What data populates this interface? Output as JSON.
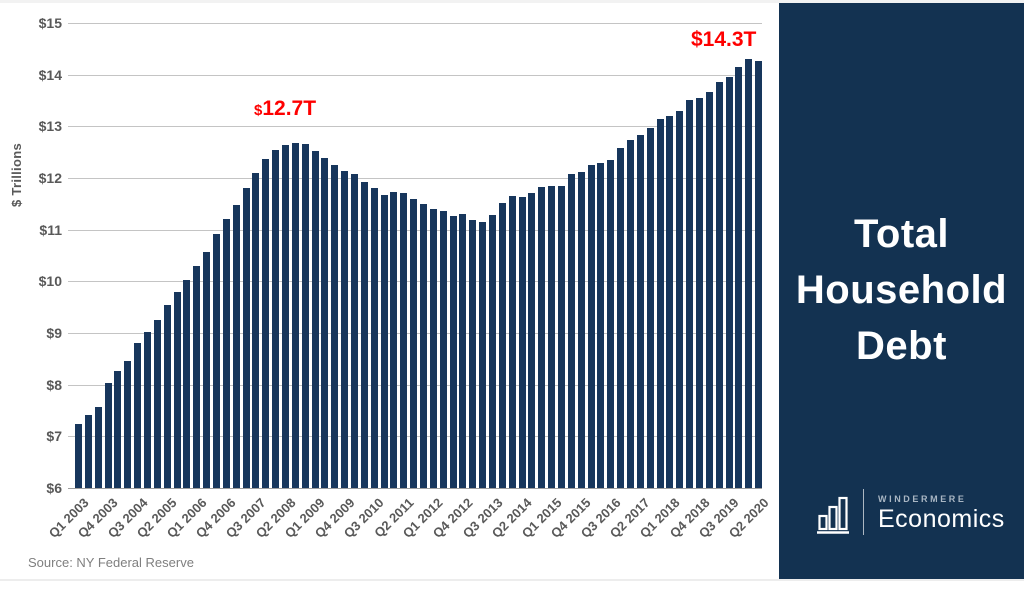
{
  "chart": {
    "y_axis_title": "$ Trillions",
    "source": "Source: NY Federal Reserve"
  },
  "annotations": {
    "peak_symbol": "$",
    "peak_value": "12.7T",
    "latest": "$14.3T"
  },
  "sidebar": {
    "title_lines": [
      "Total",
      "Household",
      "Debt"
    ],
    "brand_name": "WINDERMERE",
    "brand_division": "Economics",
    "bg_color": "#133251",
    "logo_icon": "bar-chart-icon"
  },
  "colors": {
    "bar": "#17365c",
    "gridline": "#c4c4c4",
    "axis_text": "#595959",
    "annotation_red": "#fe0000",
    "sidebar_bg": "#133251",
    "source_text": "#7f7f7f"
  },
  "chart_data": {
    "type": "bar",
    "title": "Total Household Debt",
    "xlabel": "",
    "ylabel": "$ Trillions",
    "ylim": [
      6,
      15
    ],
    "grid": true,
    "legend": false,
    "y_ticks": [
      "$6",
      "$7",
      "$8",
      "$9",
      "$10",
      "$11",
      "$12",
      "$13",
      "$14",
      "$15"
    ],
    "x_label_every": 3,
    "x_tick_labels_shown": [
      "Q1 2003",
      "Q4 2003",
      "Q3 2004",
      "Q2 2005",
      "Q1 2006",
      "Q4 2006",
      "Q3 2007",
      "Q2 2008",
      "Q1 2009",
      "Q4 2009",
      "Q3 2010",
      "Q2 2011",
      "Q1 2012",
      "Q4 2012",
      "Q3 2013",
      "Q2 2014",
      "Q1 2015",
      "Q4 2015",
      "Q3 2016",
      "Q2 2017",
      "Q1 2018",
      "Q4 2018",
      "Q3 2019",
      "Q2 2020"
    ],
    "categories": [
      "Q1 2003",
      "Q2 2003",
      "Q3 2003",
      "Q4 2003",
      "Q1 2004",
      "Q2 2004",
      "Q3 2004",
      "Q4 2004",
      "Q1 2005",
      "Q2 2005",
      "Q3 2005",
      "Q4 2005",
      "Q1 2006",
      "Q2 2006",
      "Q3 2006",
      "Q4 2006",
      "Q1 2007",
      "Q2 2007",
      "Q3 2007",
      "Q4 2007",
      "Q1 2008",
      "Q2 2008",
      "Q3 2008",
      "Q4 2008",
      "Q1 2009",
      "Q2 2009",
      "Q3 2009",
      "Q4 2009",
      "Q1 2010",
      "Q2 2010",
      "Q3 2010",
      "Q4 2010",
      "Q1 2011",
      "Q2 2011",
      "Q3 2011",
      "Q4 2011",
      "Q1 2012",
      "Q2 2012",
      "Q3 2012",
      "Q4 2012",
      "Q1 2013",
      "Q2 2013",
      "Q3 2013",
      "Q4 2013",
      "Q1 2014",
      "Q2 2014",
      "Q3 2014",
      "Q4 2014",
      "Q1 2015",
      "Q2 2015",
      "Q3 2015",
      "Q4 2015",
      "Q1 2016",
      "Q2 2016",
      "Q3 2016",
      "Q4 2016",
      "Q1 2017",
      "Q2 2017",
      "Q3 2017",
      "Q4 2017",
      "Q1 2018",
      "Q2 2018",
      "Q3 2018",
      "Q4 2018",
      "Q1 2019",
      "Q2 2019",
      "Q3 2019",
      "Q4 2019",
      "Q1 2020",
      "Q2 2020"
    ],
    "values": [
      7.23,
      7.41,
      7.57,
      8.04,
      8.27,
      8.45,
      8.81,
      9.03,
      9.26,
      9.54,
      9.79,
      10.02,
      10.3,
      10.57,
      10.92,
      11.21,
      11.48,
      11.8,
      12.1,
      12.37,
      12.54,
      12.63,
      12.68,
      12.66,
      12.52,
      12.38,
      12.25,
      12.14,
      12.08,
      11.92,
      11.81,
      11.68,
      11.73,
      11.71,
      11.6,
      11.49,
      11.4,
      11.36,
      11.27,
      11.31,
      11.19,
      11.15,
      11.28,
      11.52,
      11.65,
      11.63,
      11.71,
      11.83,
      11.85,
      11.85,
      12.07,
      12.12,
      12.25,
      12.29,
      12.35,
      12.58,
      12.73,
      12.84,
      12.96,
      13.15,
      13.21,
      13.29,
      13.51,
      13.54,
      13.67,
      13.86,
      13.95,
      14.15,
      14.3,
      14.27
    ],
    "annotations": [
      {
        "label": "$12.7T",
        "x": "Q3 2008",
        "y": 12.68,
        "color": "#fe0000"
      },
      {
        "label": "$14.3T",
        "x": "Q1 2020",
        "y": 14.3,
        "color": "#fe0000"
      }
    ]
  }
}
